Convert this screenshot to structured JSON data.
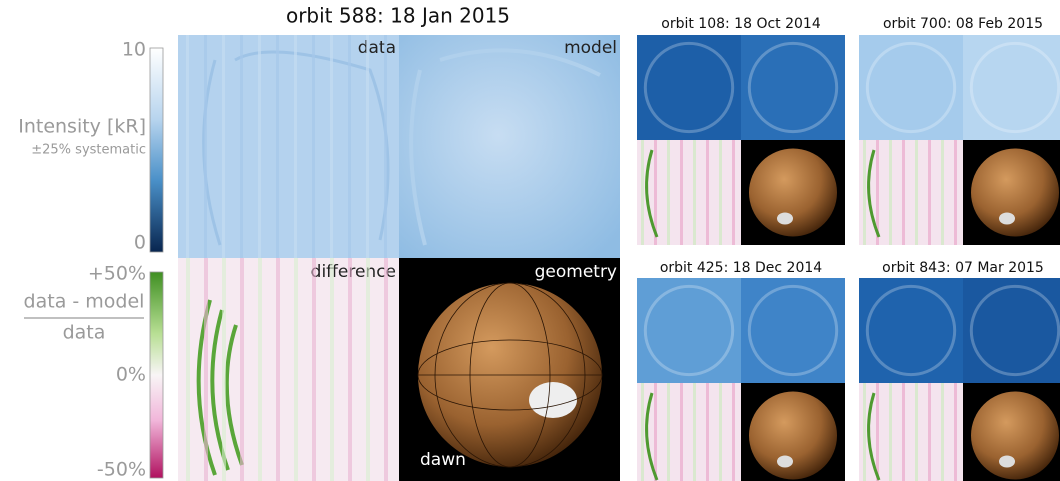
{
  "main": {
    "title": "orbit 588: 18 Jan 2015",
    "panels": [
      "data",
      "model",
      "difference",
      "geometry"
    ],
    "dawn_label": "dawn"
  },
  "intensity_colorbar": {
    "ticks": [
      "10",
      "0"
    ],
    "label": "Intensity [kR]",
    "note": "±25% systematic"
  },
  "difference_colorbar": {
    "ticks": [
      "+50%",
      "0%",
      "-50%"
    ],
    "numerator": "data - model",
    "denominator": "data"
  },
  "small_panels": [
    {
      "title": "orbit 108: 18 Oct 2014"
    },
    {
      "title": "orbit 700: 08 Feb 2015"
    },
    {
      "title": "orbit 425: 18 Dec 2014"
    },
    {
      "title": "orbit 843: 07 Mar 2015"
    }
  ]
}
